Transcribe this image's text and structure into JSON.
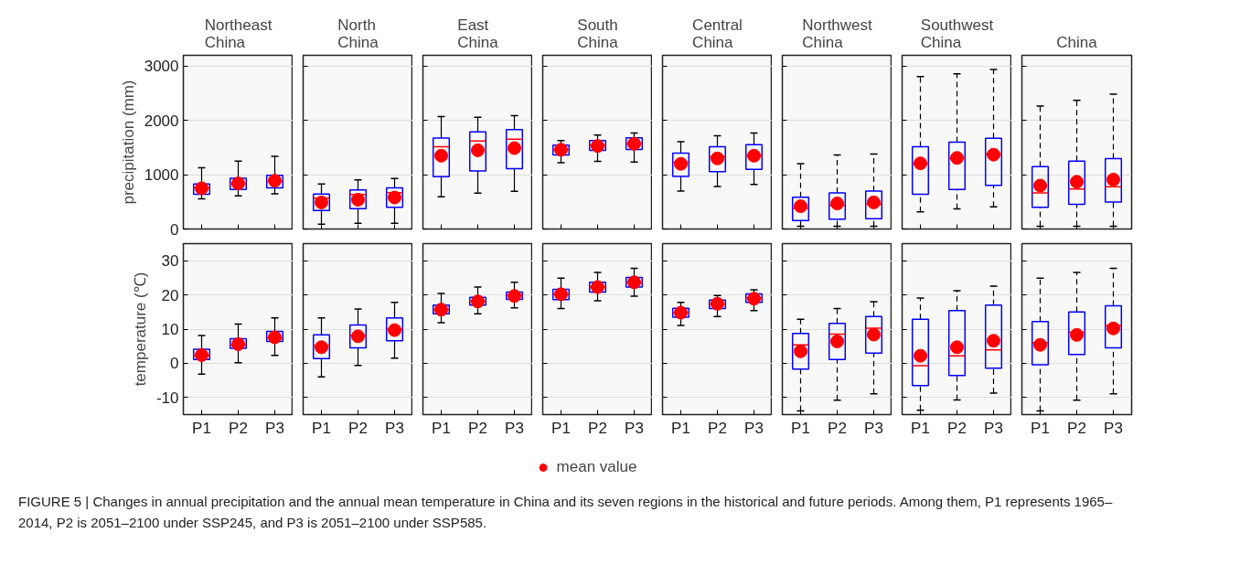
{
  "chart_data": [
    {
      "type": "box",
      "title": "Northeast China",
      "ylabel": "precipitation (mm)",
      "categories": [
        "P1",
        "P2",
        "P3"
      ],
      "ylim": [
        0,
        3200
      ],
      "yticks": [
        0,
        1000,
        2000,
        3000
      ],
      "grid": "y",
      "tick_labels": "y",
      "marker": "circle",
      "annotations": [
        "FIGURE 5 | Changes in annual precipitation and the annual mean temperature in China and its seven regions in the historical and future periods. Among them, P1 represents 1965–2014, P2 is 2051–2100 under SSP245, and P3 is 2051–2100 under SSP585."
      ],
      "series": [
        {
          "type": "box",
          "color": "#0000ff",
          "boxes": [
            {
              "low": 555,
              "q1": 640,
              "median": 760,
              "q3": 830,
              "high": 1130
            },
            {
              "low": 610,
              "q1": 730,
              "median": 830,
              "q3": 935,
              "high": 1250
            },
            {
              "low": 650,
              "q1": 760,
              "median": 875,
              "q3": 990,
              "high": 1340
            }
          ]
        },
        {
          "type": "scatter",
          "color": "#ff0000",
          "x": [
            "P1",
            "P2",
            "P3"
          ],
          "values": [
            750,
            840,
            890
          ]
        }
      ]
    },
    {
      "type": "box",
      "title": "North China",
      "categories": [
        "P1",
        "P2",
        "P3"
      ],
      "ylim": [
        0,
        3200
      ],
      "yticks": [
        0,
        1000,
        2000,
        3000
      ],
      "grid": "y",
      "tick_labels": false,
      "marker": "circle",
      "series": [
        {
          "type": "box",
          "color": "#0000ff",
          "boxes": [
            {
              "low": 90,
              "q1": 340,
              "median": 570,
              "q3": 645,
              "high": 830
            },
            {
              "low": 105,
              "q1": 375,
              "median": 635,
              "q3": 720,
              "high": 905
            },
            {
              "low": 105,
              "q1": 400,
              "median": 670,
              "q3": 760,
              "high": 930
            }
          ]
        },
        {
          "type": "scatter",
          "color": "#ff0000",
          "x": [
            "P1",
            "P2",
            "P3"
          ],
          "values": [
            490,
            540,
            580
          ]
        }
      ]
    },
    {
      "type": "box",
      "title": "East China",
      "categories": [
        "P1",
        "P2",
        "P3"
      ],
      "ylim": [
        0,
        3200
      ],
      "yticks": [
        0,
        1000,
        2000,
        3000
      ],
      "grid": "y",
      "tick_labels": false,
      "marker": "circle",
      "series": [
        {
          "type": "box",
          "color": "#0000ff",
          "boxes": [
            {
              "low": 595,
              "q1": 965,
              "median": 1515,
              "q3": 1675,
              "high": 2070
            },
            {
              "low": 660,
              "q1": 1070,
              "median": 1620,
              "q3": 1790,
              "high": 2060
            },
            {
              "low": 695,
              "q1": 1110,
              "median": 1655,
              "q3": 1830,
              "high": 2090
            }
          ]
        },
        {
          "type": "scatter",
          "color": "#ff0000",
          "x": [
            "P1",
            "P2",
            "P3"
          ],
          "values": [
            1350,
            1450,
            1490
          ]
        }
      ]
    },
    {
      "type": "box",
      "title": "South China",
      "categories": [
        "P1",
        "P2",
        "P3"
      ],
      "ylim": [
        0,
        3200
      ],
      "yticks": [
        0,
        1000,
        2000,
        3000
      ],
      "grid": "y",
      "tick_labels": false,
      "marker": "circle",
      "series": [
        {
          "type": "box",
          "color": "#0000ff",
          "boxes": [
            {
              "low": 1220,
              "q1": 1365,
              "median": 1460,
              "q3": 1545,
              "high": 1630
            },
            {
              "low": 1245,
              "q1": 1450,
              "median": 1545,
              "q3": 1630,
              "high": 1730
            },
            {
              "low": 1235,
              "q1": 1465,
              "median": 1570,
              "q3": 1680,
              "high": 1770
            }
          ]
        },
        {
          "type": "scatter",
          "color": "#ff0000",
          "x": [
            "P1",
            "P2",
            "P3"
          ],
          "values": [
            1460,
            1530,
            1570
          ]
        }
      ]
    },
    {
      "type": "box",
      "title": "Central China",
      "categories": [
        "P1",
        "P2",
        "P3"
      ],
      "ylim": [
        0,
        3200
      ],
      "yticks": [
        0,
        1000,
        2000,
        3000
      ],
      "grid": "y",
      "tick_labels": false,
      "marker": "circle",
      "series": [
        {
          "type": "box",
          "color": "#0000ff",
          "boxes": [
            {
              "low": 700,
              "q1": 970,
              "median": 1230,
              "q3": 1400,
              "high": 1610
            },
            {
              "low": 785,
              "q1": 1055,
              "median": 1330,
              "q3": 1515,
              "high": 1720
            },
            {
              "low": 820,
              "q1": 1100,
              "median": 1355,
              "q3": 1555,
              "high": 1770
            }
          ]
        },
        {
          "type": "scatter",
          "color": "#ff0000",
          "x": [
            "P1",
            "P2",
            "P3"
          ],
          "values": [
            1200,
            1300,
            1350
          ]
        }
      ]
    },
    {
      "type": "box",
      "title": "Northwest China",
      "categories": [
        "P1",
        "P2",
        "P3"
      ],
      "ylim": [
        0,
        3200
      ],
      "yticks": [
        0,
        1000,
        2000,
        3000
      ],
      "grid": "y",
      "tick_labels": false,
      "marker": "circle",
      "line_style": "dashed",
      "series": [
        {
          "type": "box",
          "color": "#0000ff",
          "boxes": [
            {
              "low": 50,
              "q1": 155,
              "median": 385,
              "q3": 585,
              "high": 1205
            },
            {
              "low": 50,
              "q1": 180,
              "median": 435,
              "q3": 665,
              "high": 1365
            },
            {
              "low": 50,
              "q1": 190,
              "median": 455,
              "q3": 700,
              "high": 1380
            }
          ]
        },
        {
          "type": "scatter",
          "color": "#ff0000",
          "x": [
            "P1",
            "P2",
            "P3"
          ],
          "values": [
            420,
            470,
            490
          ]
        }
      ]
    },
    {
      "type": "box",
      "title": "Southwest China",
      "categories": [
        "P1",
        "P2",
        "P3"
      ],
      "ylim": [
        0,
        3200
      ],
      "yticks": [
        0,
        1000,
        2000,
        3000
      ],
      "grid": "y",
      "tick_labels": false,
      "marker": "circle",
      "line_style": "dashed",
      "series": [
        {
          "type": "box",
          "color": "#0000ff",
          "boxes": [
            {
              "low": 315,
              "q1": 640,
              "median": 1210,
              "q3": 1515,
              "high": 2810
            },
            {
              "low": 370,
              "q1": 730,
              "median": 1300,
              "q3": 1600,
              "high": 2860
            },
            {
              "low": 410,
              "q1": 805,
              "median": 1380,
              "q3": 1670,
              "high": 2940
            }
          ]
        },
        {
          "type": "scatter",
          "color": "#ff0000",
          "x": [
            "P1",
            "P2",
            "P3"
          ],
          "values": [
            1210,
            1310,
            1370
          ]
        }
      ]
    },
    {
      "type": "box",
      "title": "China",
      "categories": [
        "P1",
        "P2",
        "P3"
      ],
      "ylim": [
        0,
        3200
      ],
      "yticks": [
        0,
        1000,
        2000,
        3000
      ],
      "grid": "y",
      "tick_labels": false,
      "marker": "circle",
      "line_style": "dashed",
      "series": [
        {
          "type": "box",
          "color": "#0000ff",
          "boxes": [
            {
              "low": 50,
              "q1": 400,
              "median": 665,
              "q3": 1150,
              "high": 2265
            },
            {
              "low": 50,
              "q1": 455,
              "median": 735,
              "q3": 1250,
              "high": 2370
            },
            {
              "low": 50,
              "q1": 495,
              "median": 780,
              "q3": 1295,
              "high": 2485
            }
          ]
        },
        {
          "type": "scatter",
          "color": "#ff0000",
          "x": [
            "P1",
            "P2",
            "P3"
          ],
          "values": [
            800,
            870,
            910
          ]
        }
      ]
    },
    {
      "type": "box",
      "ylabel": "temperature (℃)",
      "categories": [
        "P1",
        "P2",
        "P3"
      ],
      "ylim": [
        -15,
        35
      ],
      "yticks": [
        -10,
        0,
        10,
        20,
        30
      ],
      "grid": "y",
      "marker": "circle",
      "series": [
        {
          "type": "box",
          "color": "#0000ff",
          "boxes": [
            {
              "low": -3.2,
              "q1": 1.1,
              "median": 2.3,
              "q3": 4.1,
              "high": 8.1
            },
            {
              "low": 0.2,
              "q1": 4.4,
              "median": 5.3,
              "q3": 7.2,
              "high": 11.5
            },
            {
              "low": 2.3,
              "q1": 6.4,
              "median": 7.4,
              "q3": 9.3,
              "high": 13.3
            }
          ]
        },
        {
          "type": "scatter",
          "color": "#ff0000",
          "x": [
            "P1",
            "P2",
            "P3"
          ],
          "values": [
            2.4,
            5.6,
            7.6
          ]
        }
      ]
    },
    {
      "type": "box",
      "categories": [
        "P1",
        "P2",
        "P3"
      ],
      "ylim": [
        -15,
        35
      ],
      "yticks": [
        -10,
        0,
        10,
        20,
        30
      ],
      "grid": "y",
      "tick_labels": "x",
      "marker": "circle",
      "series": [
        {
          "type": "box",
          "color": "#0000ff",
          "boxes": [
            {
              "low": -4.0,
              "q1": 1.4,
              "median": 5.2,
              "q3": 8.3,
              "high": 13.3
            },
            {
              "low": -0.6,
              "q1": 4.5,
              "median": 8.1,
              "q3": 11.2,
              "high": 15.9
            },
            {
              "low": 1.5,
              "q1": 6.6,
              "median": 10.0,
              "q3": 13.3,
              "high": 17.8
            }
          ]
        },
        {
          "type": "scatter",
          "color": "#ff0000",
          "x": [
            "P1",
            "P2",
            "P3"
          ],
          "values": [
            4.7,
            7.9,
            9.7
          ]
        }
      ]
    },
    {
      "type": "box",
      "categories": [
        "P1",
        "P2",
        "P3"
      ],
      "ylim": [
        -15,
        35
      ],
      "yticks": [
        -10,
        0,
        10,
        20,
        30
      ],
      "grid": "y",
      "tick_labels": "x",
      "marker": "circle",
      "series": [
        {
          "type": "box",
          "color": "#0000ff",
          "boxes": [
            {
              "low": 11.9,
              "q1": 14.5,
              "median": 15.6,
              "q3": 17.0,
              "high": 20.4
            },
            {
              "low": 14.5,
              "q1": 17.0,
              "median": 18.1,
              "q3": 19.3,
              "high": 22.3
            },
            {
              "low": 16.2,
              "q1": 18.7,
              "median": 19.9,
              "q3": 20.8,
              "high": 23.7
            }
          ]
        },
        {
          "type": "scatter",
          "color": "#ff0000",
          "x": [
            "P1",
            "P2",
            "P3"
          ],
          "values": [
            15.7,
            18.1,
            19.7
          ]
        }
      ]
    },
    {
      "type": "box",
      "categories": [
        "P1",
        "P2",
        "P3"
      ],
      "ylim": [
        -15,
        35
      ],
      "yticks": [
        -10,
        0,
        10,
        20,
        30
      ],
      "grid": "y",
      "tick_labels": "x",
      "marker": "circle",
      "legend": "bottom",
      "series": [
        {
          "type": "box",
          "color": "#0000ff",
          "boxes": [
            {
              "low": 16.0,
              "q1": 18.6,
              "median": 20.2,
              "q3": 21.6,
              "high": 24.9
            },
            {
              "low": 18.3,
              "q1": 20.8,
              "median": 22.3,
              "q3": 23.7,
              "high": 26.6
            },
            {
              "low": 19.6,
              "q1": 22.3,
              "median": 23.6,
              "q3": 25.1,
              "high": 27.8
            }
          ]
        },
        {
          "type": "scatter",
          "name": "mean value",
          "color": "#ff0000",
          "x": [
            "P1",
            "P2",
            "P3"
          ],
          "values": [
            20.2,
            22.3,
            23.7
          ]
        }
      ]
    },
    {
      "type": "box",
      "categories": [
        "P1",
        "P2",
        "P3"
      ],
      "ylim": [
        -15,
        35
      ],
      "yticks": [
        -10,
        0,
        10,
        20,
        30
      ],
      "grid": "y",
      "tick_labels": "x",
      "marker": "circle",
      "series": [
        {
          "type": "box",
          "color": "#0000ff",
          "boxes": [
            {
              "low": 11.1,
              "q1": 13.5,
              "median": 14.9,
              "q3": 16.1,
              "high": 17.8
            },
            {
              "low": 13.7,
              "q1": 16.0,
              "median": 17.3,
              "q3": 18.5,
              "high": 19.8
            },
            {
              "low": 15.4,
              "q1": 17.8,
              "median": 19.1,
              "q3": 20.3,
              "high": 21.5
            }
          ]
        },
        {
          "type": "scatter",
          "color": "#ff0000",
          "x": [
            "P1",
            "P2",
            "P3"
          ],
          "values": [
            14.8,
            17.4,
            18.9
          ]
        }
      ]
    },
    {
      "type": "box",
      "categories": [
        "P1",
        "P2",
        "P3"
      ],
      "ylim": [
        -15,
        35
      ],
      "yticks": [
        -10,
        0,
        10,
        20,
        30
      ],
      "grid": "y",
      "tick_labels": "x",
      "marker": "circle",
      "line_style": "dashed",
      "series": [
        {
          "type": "box",
          "color": "#0000ff",
          "boxes": [
            {
              "low": -13.9,
              "q1": -1.7,
              "median": 5.4,
              "q3": 8.7,
              "high": 12.9
            },
            {
              "low": -10.8,
              "q1": 1.1,
              "median": 8.5,
              "q3": 11.7,
              "high": 16.0
            },
            {
              "low": -8.9,
              "q1": 3.0,
              "median": 10.3,
              "q3": 13.7,
              "high": 18.0
            }
          ]
        },
        {
          "type": "scatter",
          "color": "#ff0000",
          "x": [
            "P1",
            "P2",
            "P3"
          ],
          "values": [
            3.5,
            6.4,
            8.4
          ]
        }
      ]
    },
    {
      "type": "box",
      "categories": [
        "P1",
        "P2",
        "P3"
      ],
      "ylim": [
        -15,
        35
      ],
      "yticks": [
        -10,
        0,
        10,
        20,
        30
      ],
      "grid": "y",
      "tick_labels": "x",
      "marker": "circle",
      "line_style": "dashed",
      "series": [
        {
          "type": "box",
          "color": "#0000ff",
          "boxes": [
            {
              "low": -13.7,
              "q1": -6.5,
              "median": -0.7,
              "q3": 12.9,
              "high": 19.1
            },
            {
              "low": -10.7,
              "q1": -3.6,
              "median": 2.2,
              "q3": 15.4,
              "high": 21.2
            },
            {
              "low": -8.7,
              "q1": -1.4,
              "median": 3.9,
              "q3": 17.0,
              "high": 22.6
            }
          ]
        },
        {
          "type": "scatter",
          "color": "#ff0000",
          "x": [
            "P1",
            "P2",
            "P3"
          ],
          "values": [
            2.2,
            4.7,
            6.6
          ]
        }
      ]
    },
    {
      "type": "box",
      "categories": [
        "P1",
        "P2",
        "P3"
      ],
      "ylim": [
        -15,
        35
      ],
      "yticks": [
        -10,
        0,
        10,
        20,
        30
      ],
      "grid": "y",
      "tick_labels": "x",
      "marker": "circle",
      "line_style": "dashed",
      "series": [
        {
          "type": "box",
          "color": "#0000ff",
          "boxes": [
            {
              "low": -13.9,
              "q1": -0.4,
              "median": 6.0,
              "q3": 12.2,
              "high": 24.9
            },
            {
              "low": -10.8,
              "q1": 2.6,
              "median": 9.1,
              "q3": 15.0,
              "high": 26.6
            },
            {
              "low": -8.9,
              "q1": 4.5,
              "median": 11.1,
              "q3": 16.8,
              "high": 27.8
            }
          ]
        },
        {
          "type": "scatter",
          "color": "#ff0000",
          "x": [
            "P1",
            "P2",
            "P3"
          ],
          "values": [
            5.4,
            8.3,
            10.2
          ]
        }
      ]
    }
  ]
}
